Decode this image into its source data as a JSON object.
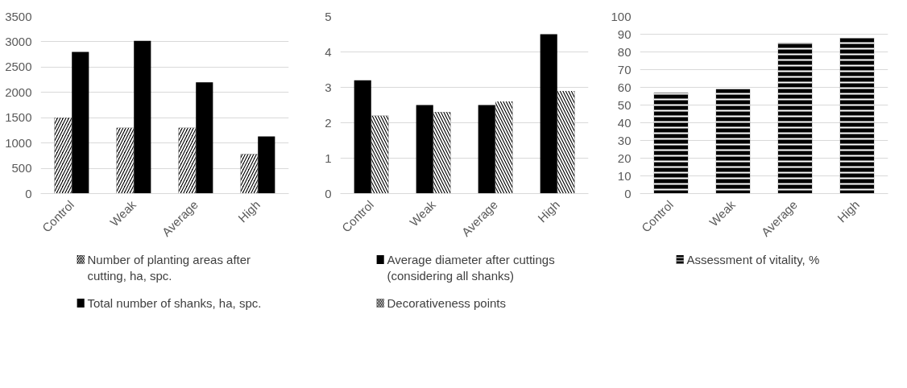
{
  "chart_data": [
    {
      "type": "bar",
      "categories": [
        "Control",
        "Weak",
        "Average",
        "High"
      ],
      "ylim": [
        0,
        3500
      ],
      "yticks": [
        0,
        500,
        1000,
        1500,
        2000,
        2500,
        3000,
        3500
      ],
      "grid": "y",
      "legend": "bottom",
      "series": [
        {
          "name": "Number of planting areas after cutting, ha, spc.",
          "color": "#000000",
          "values": [
            1500,
            1300,
            1300,
            780
          ]
        },
        {
          "name": "Total number of shanks, ha, spc.",
          "color": "#000000",
          "values": [
            2800,
            3020,
            2200,
            1130
          ]
        }
      ]
    },
    {
      "type": "bar",
      "categories": [
        "Control",
        "Weak",
        "Average",
        "High"
      ],
      "ylim": [
        0,
        5
      ],
      "yticks": [
        0,
        1,
        2,
        3,
        4,
        5
      ],
      "grid": "y",
      "legend": "bottom",
      "series": [
        {
          "name": "Average diameter after cuttings (considering all shanks)",
          "color": "#000000",
          "values": [
            3.2,
            2.5,
            2.5,
            4.5
          ]
        },
        {
          "name": "Decorativeness points",
          "color": "#000000",
          "values": [
            2.2,
            2.3,
            2.6,
            2.9
          ]
        }
      ]
    },
    {
      "type": "bar",
      "categories": [
        "Control",
        "Weak",
        "Average",
        "High"
      ],
      "ylim": [
        0,
        100
      ],
      "yticks": [
        0,
        10,
        20,
        30,
        40,
        50,
        60,
        70,
        80,
        90,
        100
      ],
      "grid": "y",
      "legend": "bottom",
      "series": [
        {
          "name": "Assessment of vitality, %",
          "color": "#000000",
          "values": [
            57,
            59,
            85,
            88
          ]
        }
      ]
    }
  ]
}
